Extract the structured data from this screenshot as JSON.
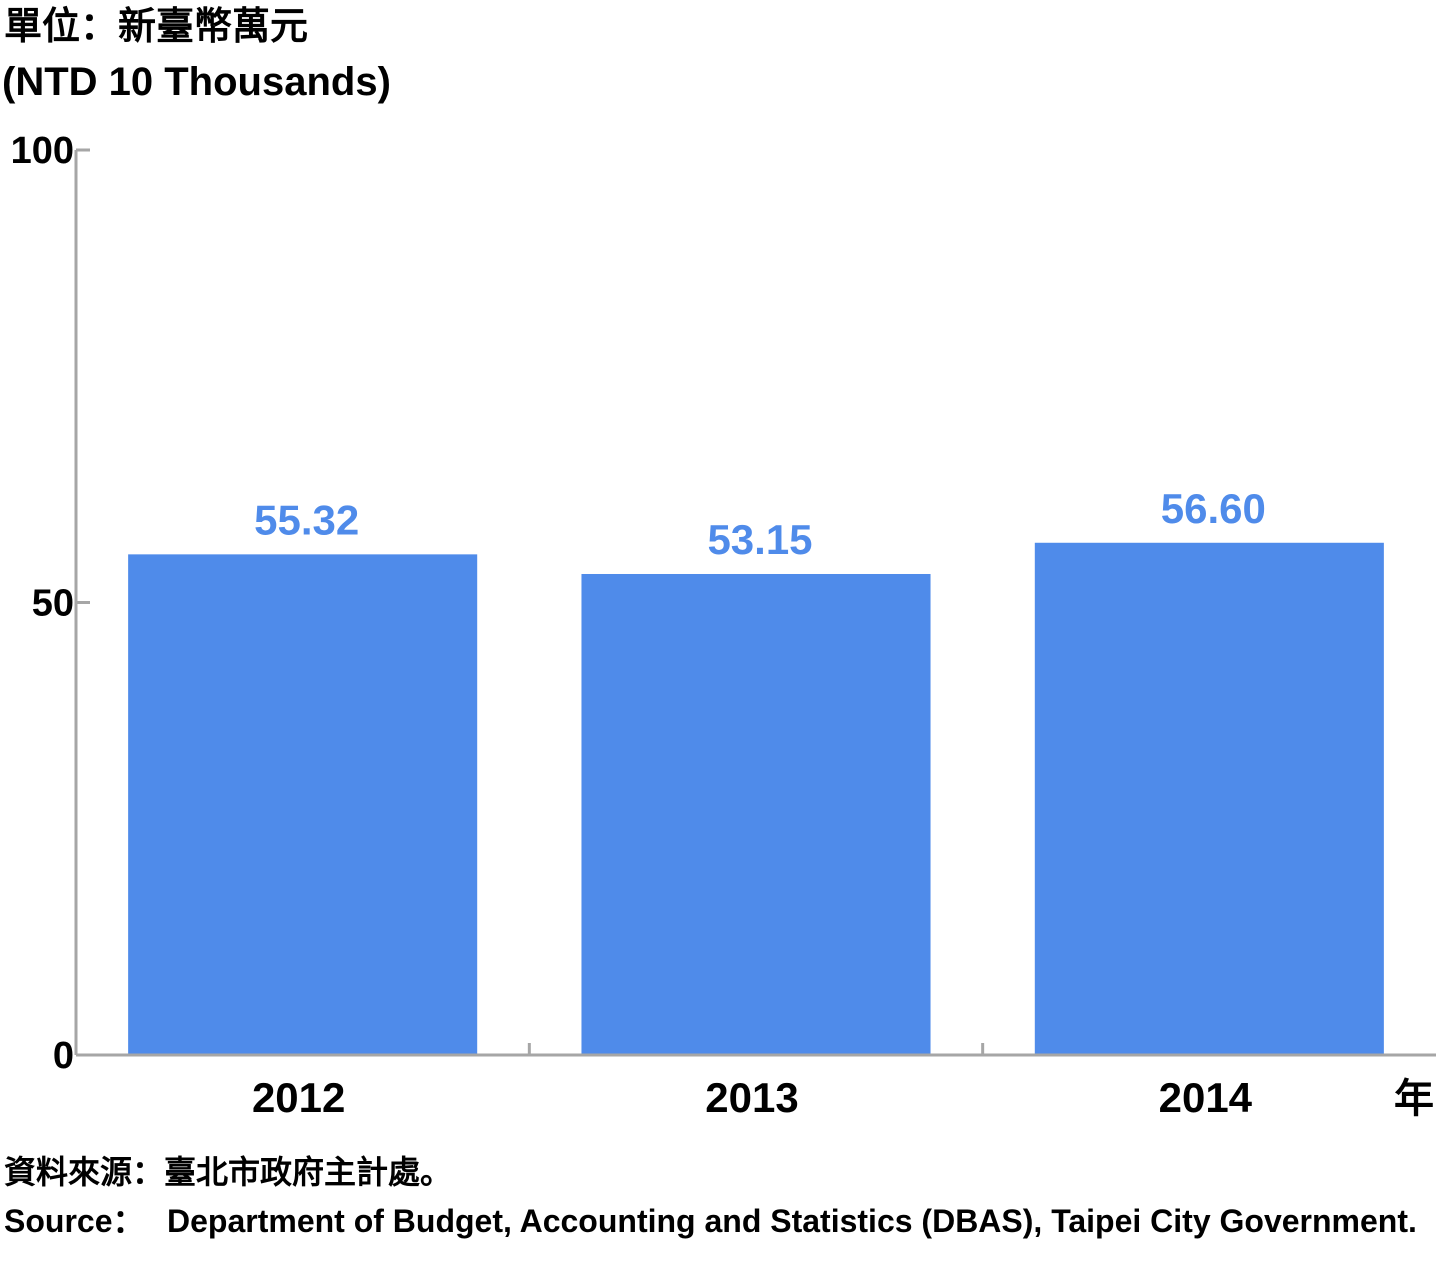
{
  "chart_data": {
    "type": "bar",
    "unit_zh": "單位：新臺幣萬元",
    "unit_en": "(NTD 10 Thousands)",
    "categories": [
      "2012",
      "2013",
      "2014"
    ],
    "values": [
      55.32,
      53.15,
      56.6
    ],
    "value_labels": [
      "55.32",
      "53.15",
      "56.60"
    ],
    "x_unit": "年",
    "yticks": [
      "0",
      "50",
      "100"
    ],
    "ylim": [
      0,
      100
    ],
    "grid": false,
    "bar_color": "#4f8bea",
    "label_color": "#4f8bea",
    "axis_color": "#a6a6a6"
  },
  "source": {
    "zh": "資料來源：臺北市政府主計處。",
    "en_prefix": "Source：",
    "en_text": "Department of Budget, Accounting and Statistics (DBAS), Taipei City Government."
  }
}
